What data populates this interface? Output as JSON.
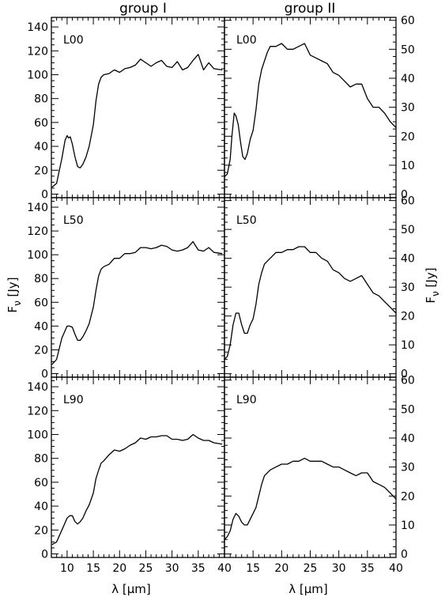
{
  "figure": {
    "column_titles": [
      "group I",
      "group II"
    ],
    "xlabel": "λ [μm]",
    "ylabel": "F_ν [Jy]",
    "ylabel_parts": {
      "base": "F",
      "sub": "ν",
      "unit": "[Jy]"
    },
    "xlabel_parts": {
      "lambda": "λ",
      "unit": "[μm]"
    }
  },
  "chart_data": [
    {
      "type": "line",
      "group": "group I",
      "label": "L00",
      "xlim": [
        7,
        40
      ],
      "ylim": [
        -3,
        148
      ],
      "xticks": [
        10,
        15,
        20,
        25,
        30,
        35,
        40
      ],
      "yticks": [
        0,
        20,
        40,
        60,
        80,
        100,
        120,
        140
      ],
      "y_axis_side": "left",
      "x": [
        7.2,
        8,
        9,
        9.6,
        10,
        10.3,
        10.6,
        11,
        11.5,
        12,
        12.5,
        13,
        13.6,
        14.2,
        15,
        15.5,
        16,
        16.5,
        17,
        18,
        19,
        20,
        21,
        22,
        23,
        24,
        25,
        26,
        27,
        28,
        29,
        30,
        31,
        32,
        33,
        34,
        35,
        36,
        37,
        38,
        39.5
      ],
      "y": [
        6,
        9,
        30,
        45,
        49,
        47,
        48,
        42,
        31,
        23,
        22,
        25,
        31,
        40,
        58,
        78,
        92,
        98,
        100,
        101,
        104,
        102,
        105,
        106,
        108,
        113,
        110,
        107,
        110,
        112,
        107,
        106,
        111,
        104,
        106,
        112,
        117,
        104,
        110,
        105,
        104
      ]
    },
    {
      "type": "line",
      "group": "group II",
      "label": "L00",
      "xlim": [
        10,
        40
      ],
      "ylim": [
        -1.2,
        61
      ],
      "xticks": [
        15,
        20,
        25,
        30,
        35,
        40
      ],
      "yticks": [
        0,
        10,
        20,
        30,
        40,
        50,
        60
      ],
      "y_axis_side": "right",
      "x": [
        10,
        10.5,
        11,
        11.3,
        11.7,
        12,
        12.4,
        12.8,
        13.2,
        13.6,
        14,
        14.5,
        15,
        15.5,
        16,
        16.5,
        17,
        17.5,
        18,
        19,
        20,
        21,
        22,
        23,
        24,
        25,
        26,
        27,
        28,
        29,
        30,
        31,
        32,
        33,
        34,
        35,
        36,
        37,
        38,
        39,
        40
      ],
      "y": [
        6,
        7,
        12,
        20,
        28,
        27,
        24,
        18,
        13,
        12,
        14,
        19,
        22,
        29,
        38,
        43,
        46,
        49,
        51,
        51,
        52,
        50,
        50,
        51,
        52,
        48,
        47,
        46,
        45,
        42,
        41,
        39,
        37,
        38,
        38,
        33,
        30,
        30,
        28,
        25,
        23
      ]
    },
    {
      "type": "line",
      "group": "group I",
      "label": "L50",
      "xlim": [
        7,
        40
      ],
      "ylim": [
        -3,
        148
      ],
      "xticks": [
        10,
        15,
        20,
        25,
        30,
        35,
        40
      ],
      "yticks": [
        0,
        20,
        40,
        60,
        80,
        100,
        120,
        140
      ],
      "y_axis_side": "left",
      "x": [
        7.2,
        8,
        9,
        10,
        10.5,
        11,
        11.5,
        12,
        12.5,
        13,
        13.6,
        14.2,
        15,
        15.5,
        16,
        16.5,
        17,
        18,
        19,
        20,
        21,
        22,
        23,
        24,
        25,
        26,
        27,
        28,
        29,
        30,
        31,
        32,
        33,
        34,
        35,
        36,
        37,
        38,
        39.5
      ],
      "y": [
        8,
        12,
        30,
        40,
        40,
        39,
        33,
        28,
        28,
        31,
        36,
        42,
        56,
        70,
        82,
        88,
        90,
        92,
        97,
        97,
        101,
        101,
        102,
        106,
        106,
        105,
        106,
        108,
        107,
        104,
        103,
        104,
        106,
        111,
        104,
        103,
        106,
        102,
        101
      ]
    },
    {
      "type": "line",
      "group": "group II",
      "label": "L50",
      "xlim": [
        10,
        40
      ],
      "ylim": [
        -1.2,
        61
      ],
      "xticks": [
        15,
        20,
        25,
        30,
        35,
        40
      ],
      "yticks": [
        0,
        10,
        20,
        30,
        40,
        50,
        60
      ],
      "y_axis_side": "right",
      "x": [
        10,
        10.5,
        11,
        11.5,
        12,
        12.5,
        13,
        13.5,
        14,
        14.5,
        15,
        15.5,
        16,
        16.5,
        17,
        18,
        19,
        20,
        21,
        22,
        23,
        24,
        25,
        26,
        27,
        28,
        29,
        30,
        31,
        32,
        33,
        34,
        35,
        36,
        37,
        38,
        39,
        40
      ],
      "y": [
        5,
        6,
        10,
        17,
        21,
        21,
        17,
        14,
        14,
        17,
        19,
        24,
        31,
        35,
        38,
        40,
        42,
        42,
        43,
        43,
        44,
        44,
        42,
        42,
        40,
        39,
        36,
        35,
        33,
        32,
        33,
        34,
        31,
        28,
        27,
        25,
        23,
        21
      ]
    },
    {
      "type": "line",
      "group": "group I",
      "label": "L90",
      "xlim": [
        7,
        40
      ],
      "ylim": [
        -3,
        148
      ],
      "xticks": [
        10,
        15,
        20,
        25,
        30,
        35,
        40
      ],
      "yticks": [
        0,
        20,
        40,
        60,
        80,
        100,
        120,
        140
      ],
      "y_axis_side": "left",
      "x": [
        7.2,
        8,
        9,
        10,
        10.5,
        11,
        11.5,
        12,
        12.5,
        13,
        13.6,
        14.2,
        15,
        15.5,
        16,
        16.5,
        17,
        18,
        19,
        20,
        21,
        22,
        23,
        24,
        25,
        26,
        27,
        28,
        29,
        30,
        31,
        32,
        33,
        34,
        35,
        36,
        37,
        38,
        39.5
      ],
      "y": [
        8,
        10,
        20,
        30,
        32,
        32,
        27,
        25,
        27,
        30,
        36,
        41,
        51,
        63,
        70,
        76,
        78,
        83,
        87,
        86,
        88,
        91,
        93,
        97,
        96,
        98,
        98,
        99,
        99,
        96,
        96,
        95,
        96,
        100,
        97,
        95,
        95,
        93,
        92
      ]
    },
    {
      "type": "line",
      "group": "group II",
      "label": "L90",
      "xlim": [
        10,
        40
      ],
      "ylim": [
        -1.2,
        61
      ],
      "xticks": [
        15,
        20,
        25,
        30,
        35,
        40
      ],
      "yticks": [
        0,
        10,
        20,
        30,
        40,
        50,
        60
      ],
      "y_axis_side": "right",
      "x": [
        10,
        10.5,
        11,
        11.5,
        12,
        12.5,
        13,
        13.5,
        14,
        14.5,
        15,
        15.5,
        16,
        16.5,
        17,
        18,
        19,
        20,
        21,
        22,
        23,
        24,
        25,
        26,
        27,
        28,
        29,
        30,
        31,
        32,
        33,
        34,
        35,
        36,
        37,
        38,
        39,
        40
      ],
      "y": [
        5,
        6,
        8,
        12,
        14,
        13,
        11,
        10,
        10,
        12,
        14,
        16,
        20,
        24,
        27,
        29,
        30,
        31,
        31,
        32,
        32,
        33,
        32,
        32,
        32,
        31,
        30,
        30,
        29,
        28,
        27,
        28,
        28,
        25,
        24,
        23,
        21,
        19
      ]
    }
  ]
}
